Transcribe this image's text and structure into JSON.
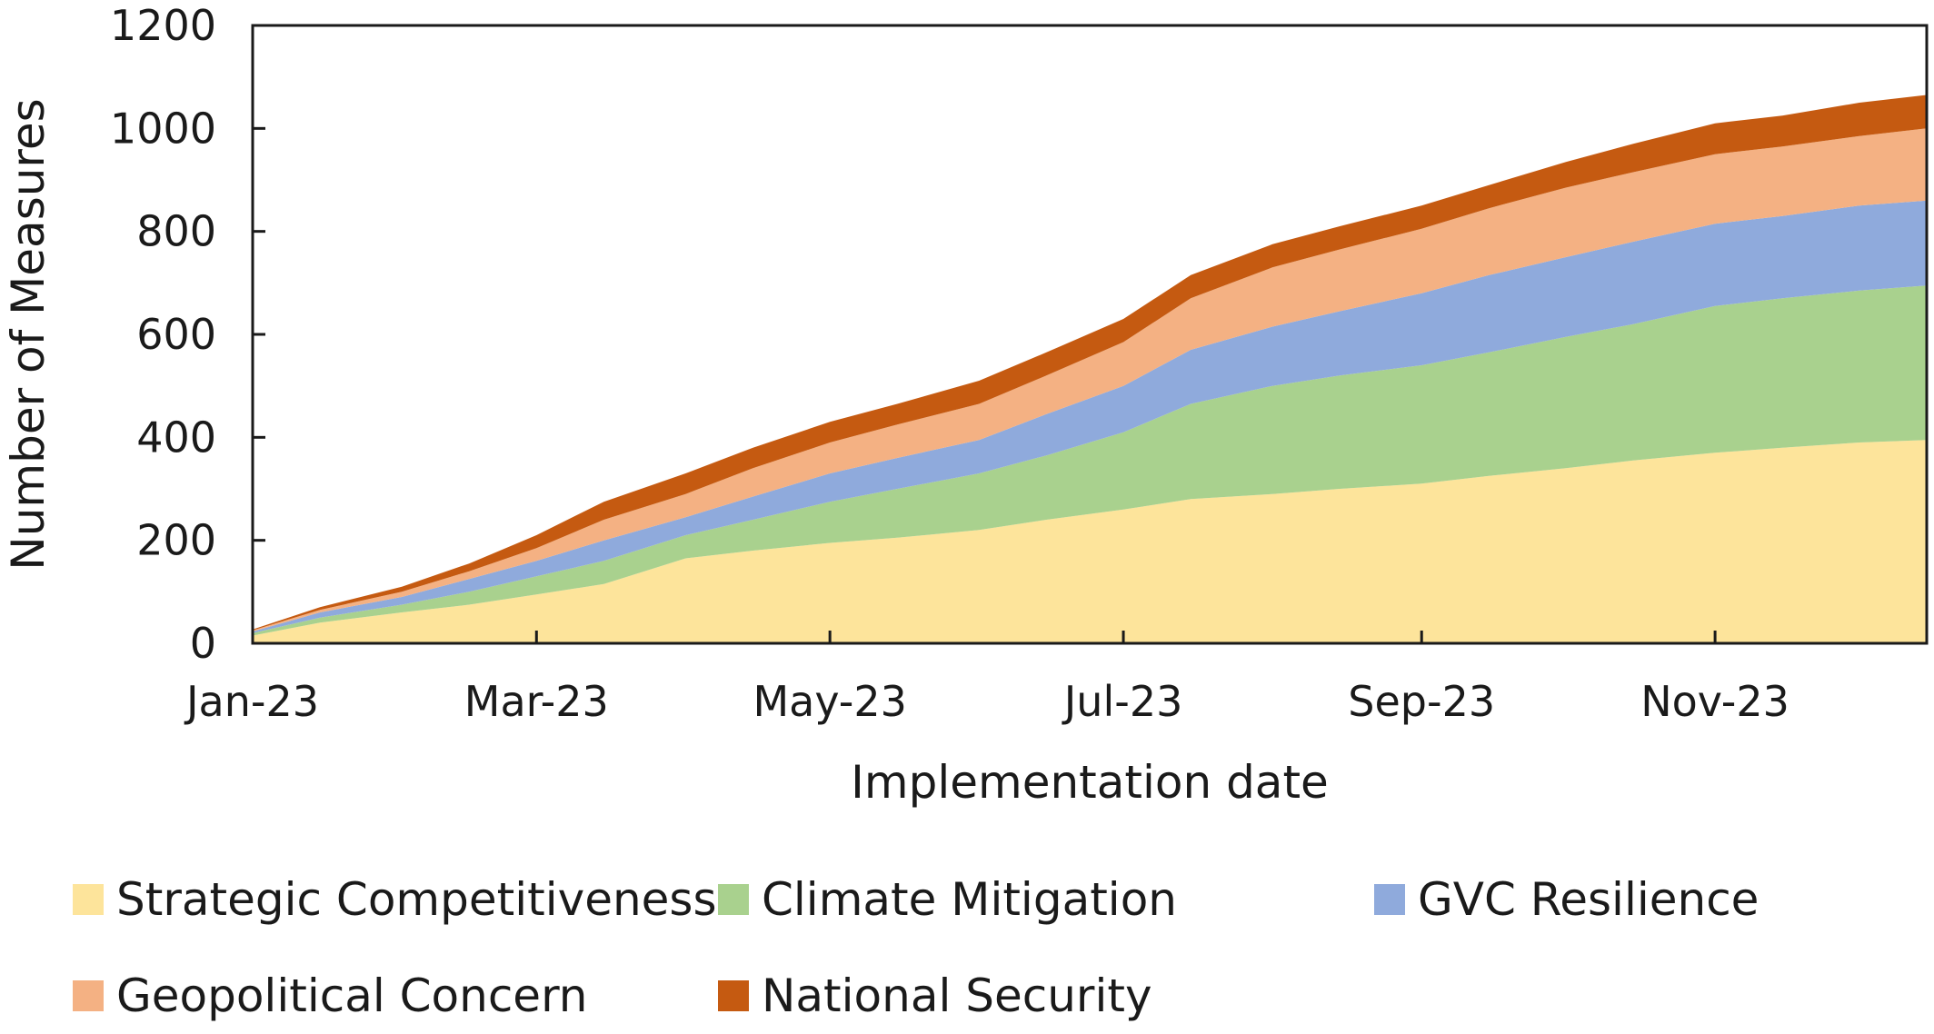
{
  "chart_data": {
    "type": "area",
    "stacked": true,
    "xlabel": "Implementation date",
    "ylabel": "Number of Measures",
    "ylim": [
      0,
      1200
    ],
    "yticks": [
      0,
      200,
      400,
      600,
      800,
      1000,
      1200
    ],
    "xlim": [
      "2023-01-01",
      "2023-12-15"
    ],
    "xticks": [
      {
        "date": "2023-01-01",
        "label": "Jan-23"
      },
      {
        "date": "2023-03-01",
        "label": "Mar-23"
      },
      {
        "date": "2023-05-01",
        "label": "May-23"
      },
      {
        "date": "2023-07-01",
        "label": "Jul-23"
      },
      {
        "date": "2023-09-01",
        "label": "Sep-23"
      },
      {
        "date": "2023-11-01",
        "label": "Nov-23"
      }
    ],
    "legend_position": "bottom",
    "x": [
      "2023-01-01",
      "2023-01-15",
      "2023-02-01",
      "2023-02-15",
      "2023-03-01",
      "2023-03-15",
      "2023-04-01",
      "2023-04-15",
      "2023-05-01",
      "2023-05-15",
      "2023-06-01",
      "2023-06-15",
      "2023-07-01",
      "2023-07-15",
      "2023-08-01",
      "2023-08-15",
      "2023-09-01",
      "2023-09-15",
      "2023-10-01",
      "2023-10-15",
      "2023-11-01",
      "2023-11-15",
      "2023-12-01",
      "2023-12-15"
    ],
    "series": [
      {
        "name": "Strategic Competitiveness",
        "color": "#fde49b",
        "values": [
          15,
          40,
          60,
          75,
          95,
          115,
          165,
          180,
          195,
          205,
          220,
          240,
          260,
          280,
          290,
          300,
          310,
          325,
          340,
          355,
          370,
          380,
          390,
          395
        ]
      },
      {
        "name": "Climate Mitigation",
        "color": "#a9d18e",
        "values": [
          5,
          10,
          15,
          25,
          35,
          45,
          45,
          60,
          80,
          95,
          110,
          125,
          150,
          185,
          210,
          220,
          230,
          240,
          255,
          265,
          285,
          290,
          295,
          300
        ]
      },
      {
        "name": "GVC Resilience",
        "color": "#8faadc",
        "values": [
          3,
          10,
          15,
          25,
          30,
          40,
          35,
          45,
          55,
          60,
          65,
          80,
          90,
          105,
          115,
          125,
          140,
          150,
          155,
          160,
          160,
          160,
          165,
          165
        ]
      },
      {
        "name": "Geopolitical Concern",
        "color": "#f4b183",
        "values": [
          2,
          5,
          10,
          15,
          25,
          40,
          45,
          55,
          60,
          65,
          70,
          75,
          85,
          100,
          115,
          120,
          125,
          130,
          135,
          135,
          135,
          135,
          135,
          140
        ]
      },
      {
        "name": "National Security",
        "color": "#c55a11",
        "values": [
          2,
          5,
          10,
          15,
          25,
          35,
          40,
          40,
          40,
          40,
          45,
          45,
          45,
          45,
          45,
          45,
          45,
          45,
          50,
          55,
          60,
          60,
          65,
          65
        ]
      }
    ]
  }
}
